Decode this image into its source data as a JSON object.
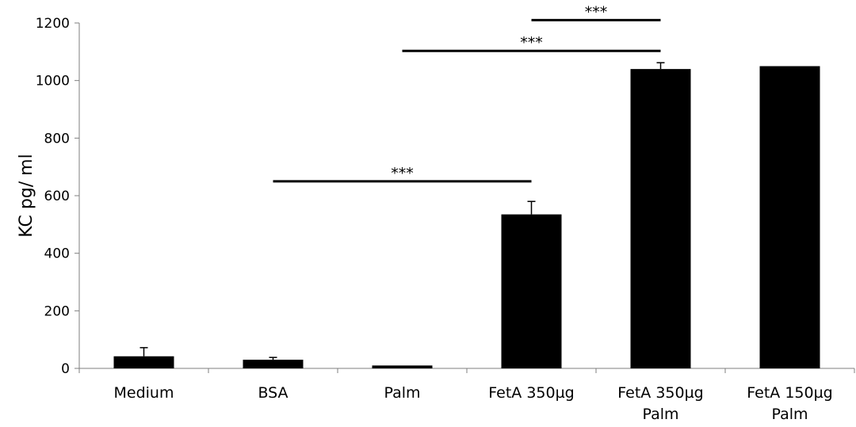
{
  "chart_data": {
    "type": "bar",
    "title": "",
    "xlabel": "",
    "ylabel": "KC pg/ ml",
    "ylim": [
      0,
      1200
    ],
    "yticks": [
      0,
      200,
      400,
      600,
      800,
      1000,
      1200
    ],
    "grid": false,
    "legend": "none",
    "categories": [
      [
        "Medium"
      ],
      [
        "BSA"
      ],
      [
        "Palm"
      ],
      [
        "FetA 350µg"
      ],
      [
        "FetA 350µg",
        "Palm"
      ],
      [
        "FetA 150µg",
        "Palm"
      ]
    ],
    "values": [
      42,
      30,
      10,
      535,
      1040,
      1050
    ],
    "errors": [
      30,
      8,
      0,
      45,
      22,
      0
    ],
    "bar_color": "#000000",
    "significance": [
      {
        "from": 1,
        "to": 3,
        "y": 650,
        "label": "***"
      },
      {
        "from": 2,
        "to": 4,
        "y": 1103,
        "label": "***"
      },
      {
        "from": 3,
        "to": 4,
        "y": 1210,
        "label": "***"
      }
    ]
  }
}
